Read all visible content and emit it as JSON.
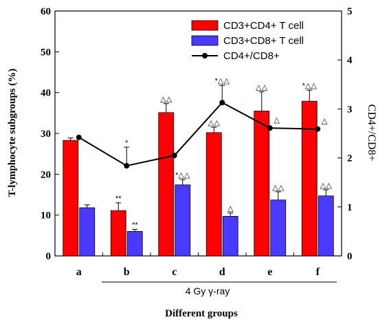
{
  "chart_data": {
    "type": "bar",
    "categories": [
      "a",
      "b",
      "c",
      "d",
      "e",
      "f"
    ],
    "xlabel": "Different groups",
    "ylabel": "T-lymphocyte subgroups (%)",
    "y2label": "CD4+/CD8+",
    "ylim": [
      0,
      60
    ],
    "y2lim": [
      0,
      5
    ],
    "yticks": [
      0,
      10,
      20,
      30,
      40,
      50,
      60
    ],
    "y2ticks": [
      0,
      1,
      2,
      3,
      4,
      5
    ],
    "group_bracket_label": "4 Gy γ-ray",
    "legend_position": "top-right",
    "series": [
      {
        "name": "CD3+CD4+ T cell",
        "color": "#ff0000",
        "values": [
          28.3,
          11.1,
          35.1,
          30.2,
          35.5,
          37.9
        ],
        "errors": [
          0.6,
          1.9,
          2.2,
          1.3,
          4.7,
          2.7
        ],
        "annotations": [
          "",
          "**",
          "△△",
          "△△",
          "△△",
          "*△△"
        ]
      },
      {
        "name": "CD3+CD8+ T cell",
        "color": "#4a3aff",
        "values": [
          11.8,
          6.0,
          17.4,
          9.7,
          13.7,
          14.7
        ],
        "errors": [
          0.7,
          0.5,
          1.3,
          0.8,
          2.0,
          1.5
        ],
        "annotations": [
          "",
          "**",
          "*△△",
          "△",
          "△△",
          "△△"
        ]
      },
      {
        "name": "CD4+/CD8+",
        "type": "line",
        "axis": "right",
        "color": "#000000",
        "values": [
          2.42,
          1.84,
          2.05,
          3.13,
          2.61,
          2.59
        ],
        "errors": [
          0,
          0.38,
          0,
          0.35,
          0,
          0
        ],
        "annotations": [
          "",
          "*",
          "",
          "*△△",
          "△",
          "△"
        ]
      }
    ]
  }
}
